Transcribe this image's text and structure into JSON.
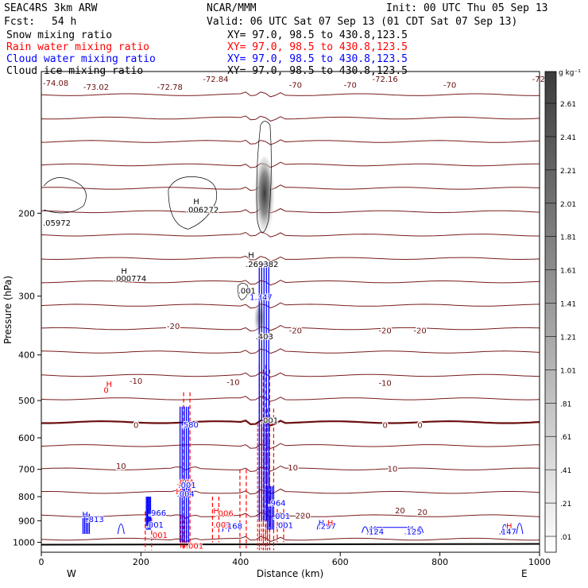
{
  "header": {
    "model": "SEAC4RS  3km ARW",
    "center": "NCAR/MMM",
    "init": "Init: 00 UTC Thu 05 Sep 13",
    "fcst_label": "Fcst:",
    "fcst_value": "54 h",
    "valid": "Valid: 06 UTC Sat 07 Sep 13 (01 CDT Sat 07 Sep 13)"
  },
  "legend": [
    {
      "name": "Snow mixing ratio",
      "xy": "XY=  97.0, 98.5 to 430.8,123.5",
      "color": "#000000"
    },
    {
      "name": "Rain water mixing ratio",
      "xy": "XY=  97.0, 98.5 to 430.8,123.5",
      "color": "#ff0000"
    },
    {
      "name": "Cloud water mixing ratio",
      "xy": "XY=  97.0, 98.5 to 430.8,123.5",
      "color": "#0000ff"
    },
    {
      "name": "Cloud ice mixing ratio",
      "xy": "XY=  97.0, 98.5 to 430.8,123.5",
      "color": "#000000"
    }
  ],
  "chart_data": {
    "type": "cross-section",
    "xlabel": "Distance (km)",
    "ylabel": "Pressure (hPa)",
    "xlim": [
      0,
      1000
    ],
    "ylim": [
      1050,
      100
    ],
    "y_scale": "log",
    "x_ticks": [
      0,
      200,
      400,
      600,
      800,
      1000
    ],
    "y_ticks": [
      200,
      300,
      400,
      500,
      600,
      700,
      800,
      900,
      1000
    ],
    "endpoint_left": "W",
    "endpoint_right": "E",
    "colorbar": {
      "unit": "g kg⁻¹",
      "ticks": [
        "2.61",
        "2.41",
        "2.21",
        "2.01",
        "1.81",
        "1.61",
        "1.41",
        "1.21",
        "1.01",
        ".81",
        ".61",
        ".41",
        ".21",
        ".01"
      ],
      "palette": "grayscale (white to dark gray)"
    },
    "temperature_contour_labels": [
      {
        "text": "-73.02",
        "x": 110,
        "p": 108
      },
      {
        "text": "-72.78",
        "x": 258,
        "p": 108
      },
      {
        "text": "-72.84",
        "x": 350,
        "p": 104
      },
      {
        "text": "-70",
        "x": 510,
        "p": 107
      },
      {
        "text": "-70",
        "x": 620,
        "p": 107
      },
      {
        "text": "-70",
        "x": 820,
        "p": 107
      },
      {
        "text": "-72.16",
        "x": 690,
        "p": 104
      },
      {
        "text": "-70",
        "x": 510,
        "p": 107
      },
      {
        "text": "-20",
        "x": 265,
        "p": 348
      },
      {
        "text": "-20",
        "x": 510,
        "p": 356
      },
      {
        "text": "-20",
        "x": 690,
        "p": 356
      },
      {
        "text": "-20",
        "x": 760,
        "p": 356
      },
      {
        "text": "-10",
        "x": 190,
        "p": 455
      },
      {
        "text": "-10",
        "x": 385,
        "p": 458
      },
      {
        "text": "-10",
        "x": 690,
        "p": 460
      },
      {
        "text": "0",
        "x": 190,
        "p": 565
      },
      {
        "text": "0",
        "x": 690,
        "p": 565
      },
      {
        "text": "0",
        "x": 760,
        "p": 565
      },
      {
        "text": "10",
        "x": 160,
        "p": 690
      },
      {
        "text": "10",
        "x": 505,
        "p": 695
      },
      {
        "text": "10",
        "x": 705,
        "p": 700
      },
      {
        "text": "20",
        "x": 520,
        "p": 880
      },
      {
        "text": "20",
        "x": 720,
        "p": 858
      },
      {
        "text": "20",
        "x": 765,
        "p": 864
      }
    ],
    "temperature_contours": [
      -70,
      -65,
      -60,
      -55,
      -50,
      -45,
      -40,
      -35,
      -30,
      -25,
      -20,
      -15,
      -10,
      -5,
      0,
      5,
      10,
      15,
      20,
      25
    ],
    "annotations": [
      {
        "text": "-74.08",
        "x": 0,
        "p": 106,
        "color": "#6b1010"
      },
      {
        "text": "-72",
        "x": 985,
        "p": 104,
        "color": "#6b1010"
      },
      {
        "text": "H",
        "x": 305,
        "p": 189,
        "color": "#000000"
      },
      {
        "text": ".006272",
        "x": 290,
        "p": 197,
        "color": "#000000"
      },
      {
        "text": ".05972",
        "x": 0,
        "p": 210,
        "color": "#000000"
      },
      {
        "text": "H",
        "x": 160,
        "p": 266,
        "color": "#000000"
      },
      {
        "text": ".000774",
        "x": 145,
        "p": 276,
        "color": "#000000"
      },
      {
        "text": "H",
        "x": 415,
        "p": 246,
        "color": "#000000"
      },
      {
        "text": ".269382",
        "x": 410,
        "p": 257,
        "color": "#000000"
      },
      {
        "text": ".001",
        "x": 395,
        "p": 293,
        "color": "#000000"
      },
      {
        "text": "1.347",
        "x": 418,
        "p": 302,
        "color": "#0000ff"
      },
      {
        "text": ".403",
        "x": 430,
        "p": 366,
        "color": "#000000"
      },
      {
        "text": "H",
        "x": 130,
        "p": 462,
        "color": "#ff0000"
      },
      {
        "text": "0",
        "x": 125,
        "p": 476,
        "color": "#ff0000"
      },
      {
        "text": ".580",
        "x": 280,
        "p": 564,
        "color": "#0000ff"
      },
      {
        "text": ".001",
        "x": 440,
        "p": 552,
        "color": "#000000"
      },
      {
        "text": ".001",
        "x": 272,
        "p": 748,
        "color": "#ff0000"
      },
      {
        "text": ".001",
        "x": 275,
        "p": 758,
        "color": "#0000ff"
      },
      {
        "text": "H",
        "x": 270,
        "p": 781,
        "color": "#ff0000"
      },
      {
        "text": ".004",
        "x": 272,
        "p": 791,
        "color": "#0000ff"
      },
      {
        "text": ".964",
        "x": 455,
        "p": 826,
        "color": "#0000ff"
      },
      {
        "text": "H",
        "x": 345,
        "p": 860,
        "color": "#ff0000"
      },
      {
        "text": ".006",
        "x": 350,
        "p": 870,
        "color": "#ff0000"
      },
      {
        "text": ".966",
        "x": 215,
        "p": 868,
        "color": "#0000ff"
      },
      {
        "text": "H",
        "x": 82,
        "p": 875,
        "color": "#0000ff"
      },
      {
        "text": ".813",
        "x": 90,
        "p": 896,
        "color": "#0000ff"
      },
      {
        "text": ".001",
        "x": 464,
        "p": 882,
        "color": "#0000ff"
      },
      {
        "text": ".001",
        "x": 210,
        "p": 920,
        "color": "#0000ff"
      },
      {
        "text": ".001",
        "x": 345,
        "p": 920,
        "color": "#ff0000"
      },
      {
        "text": ".168",
        "x": 368,
        "p": 925,
        "color": "#0000ff"
      },
      {
        "text": ".001",
        "x": 470,
        "p": 922,
        "color": "#0000ff"
      },
      {
        "text": "20",
        "x": 520,
        "p": 880,
        "color": "#6b1010"
      },
      {
        "text": "H",
        "x": 556,
        "p": 912,
        "color": "#0000ff"
      },
      {
        "text": ".297",
        "x": 556,
        "p": 925,
        "color": "#0000ff"
      },
      {
        "text": "H",
        "x": 574,
        "p": 912,
        "color": "#ff0000"
      },
      {
        "text": "H",
        "x": 660,
        "p": 938,
        "color": "#0000ff"
      },
      {
        "text": ".124",
        "x": 652,
        "p": 951,
        "color": "#0000ff"
      },
      {
        "text": "H",
        "x": 735,
        "p": 938,
        "color": "#0000ff"
      },
      {
        "text": ".125",
        "x": 728,
        "p": 951,
        "color": "#0000ff"
      },
      {
        "text": "H",
        "x": 933,
        "p": 925,
        "color": "#ff0000"
      },
      {
        "text": ".147",
        "x": 918,
        "p": 951,
        "color": "#0000ff"
      },
      {
        "text": ".001",
        "x": 218,
        "p": 968,
        "color": "#ff0000"
      },
      {
        "text": ".001",
        "x": 290,
        "p": 1020,
        "color": "#ff0000"
      }
    ]
  }
}
